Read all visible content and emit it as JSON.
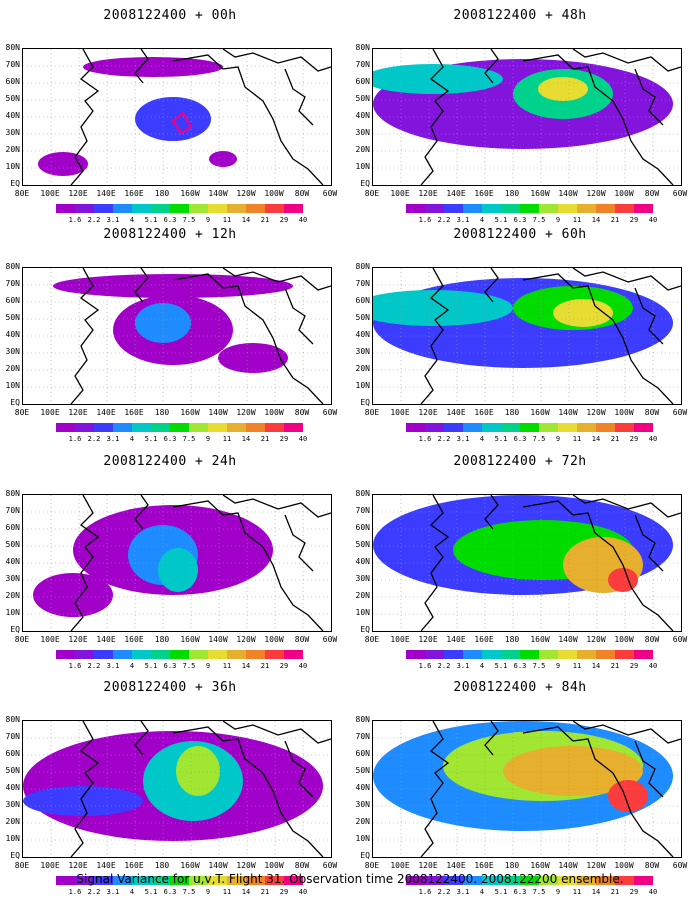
{
  "footer": "Signal Variance for u,v,T. Flight 31. Observation time 2008122400. 2008122200 ensemble.",
  "lat_labels": [
    "80N",
    "70N",
    "60N",
    "50N",
    "40N",
    "30N",
    "20N",
    "10N",
    "EQ"
  ],
  "lon_labels": [
    "80E",
    "100E",
    "120E",
    "140E",
    "160E",
    "180",
    "160W",
    "140W",
    "120W",
    "100W",
    "80W",
    "60W"
  ],
  "colorbar": {
    "labels": [
      "1.6",
      "2.2",
      "3.1",
      "4",
      "5.1",
      "6.3",
      "7.5",
      "9",
      "11",
      "14",
      "21",
      "29",
      "40"
    ],
    "colors": [
      "#a000c8",
      "#8214dc",
      "#3c3cff",
      "#1e8cff",
      "#00c8c8",
      "#00d28c",
      "#00dc00",
      "#a0e632",
      "#e6dc32",
      "#e6af2d",
      "#f08228",
      "#fa3c3c",
      "#f00082"
    ]
  },
  "panels": [
    {
      "title": "2008122400 + 00h",
      "level": 0
    },
    {
      "title": "2008122400 + 48h",
      "level": 4
    },
    {
      "title": "2008122400 + 12h",
      "level": 1
    },
    {
      "title": "2008122400 + 60h",
      "level": 5
    },
    {
      "title": "2008122400 + 24h",
      "level": 2
    },
    {
      "title": "2008122400 + 72h",
      "level": 6
    },
    {
      "title": "2008122400 + 36h",
      "level": 3
    },
    {
      "title": "2008122400 + 84h",
      "level": 7
    }
  ]
}
